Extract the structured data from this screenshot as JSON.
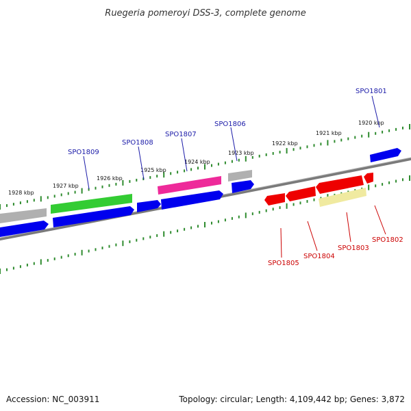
{
  "title": "Ruegeria pomeroyi DSS-3, complete genome",
  "footer": {
    "accession": "Accession: NC_003911",
    "summary": "Topology: circular; Length: 4,109,442 bp; Genes: 3,872"
  },
  "colors": {
    "backbone": "#808080",
    "tick": "#2e8b2e",
    "forward_gene": "#0000ee",
    "reverse_gene": "#ee0000",
    "label_forward": "#1a1aa8",
    "label_reverse": "#cc0000",
    "grey_gene": "#b0b0b0",
    "green_gene": "#33cc33",
    "magenta_gene": "#ee2a9a",
    "yellow_gene": "#f0eaa0"
  },
  "scale_labels": [
    "1920 kbp",
    "1921 kbp",
    "1922 kbp",
    "1923 kbp",
    "1924 kbp",
    "1925 kbp",
    "1926 kbp",
    "1927 kbp",
    "1928 kbp"
  ],
  "gene_labels": [
    {
      "name": "SPO1801",
      "strand": "forward"
    },
    {
      "name": "SPO1802",
      "strand": "reverse"
    },
    {
      "name": "SPO1803",
      "strand": "reverse"
    },
    {
      "name": "SPO1804",
      "strand": "reverse"
    },
    {
      "name": "SPO1805",
      "strand": "reverse"
    },
    {
      "name": "SPO1806",
      "strand": "forward"
    },
    {
      "name": "SPO1807",
      "strand": "forward"
    },
    {
      "name": "SPO1808",
      "strand": "forward"
    },
    {
      "name": "SPO1809",
      "strand": "forward"
    }
  ]
}
